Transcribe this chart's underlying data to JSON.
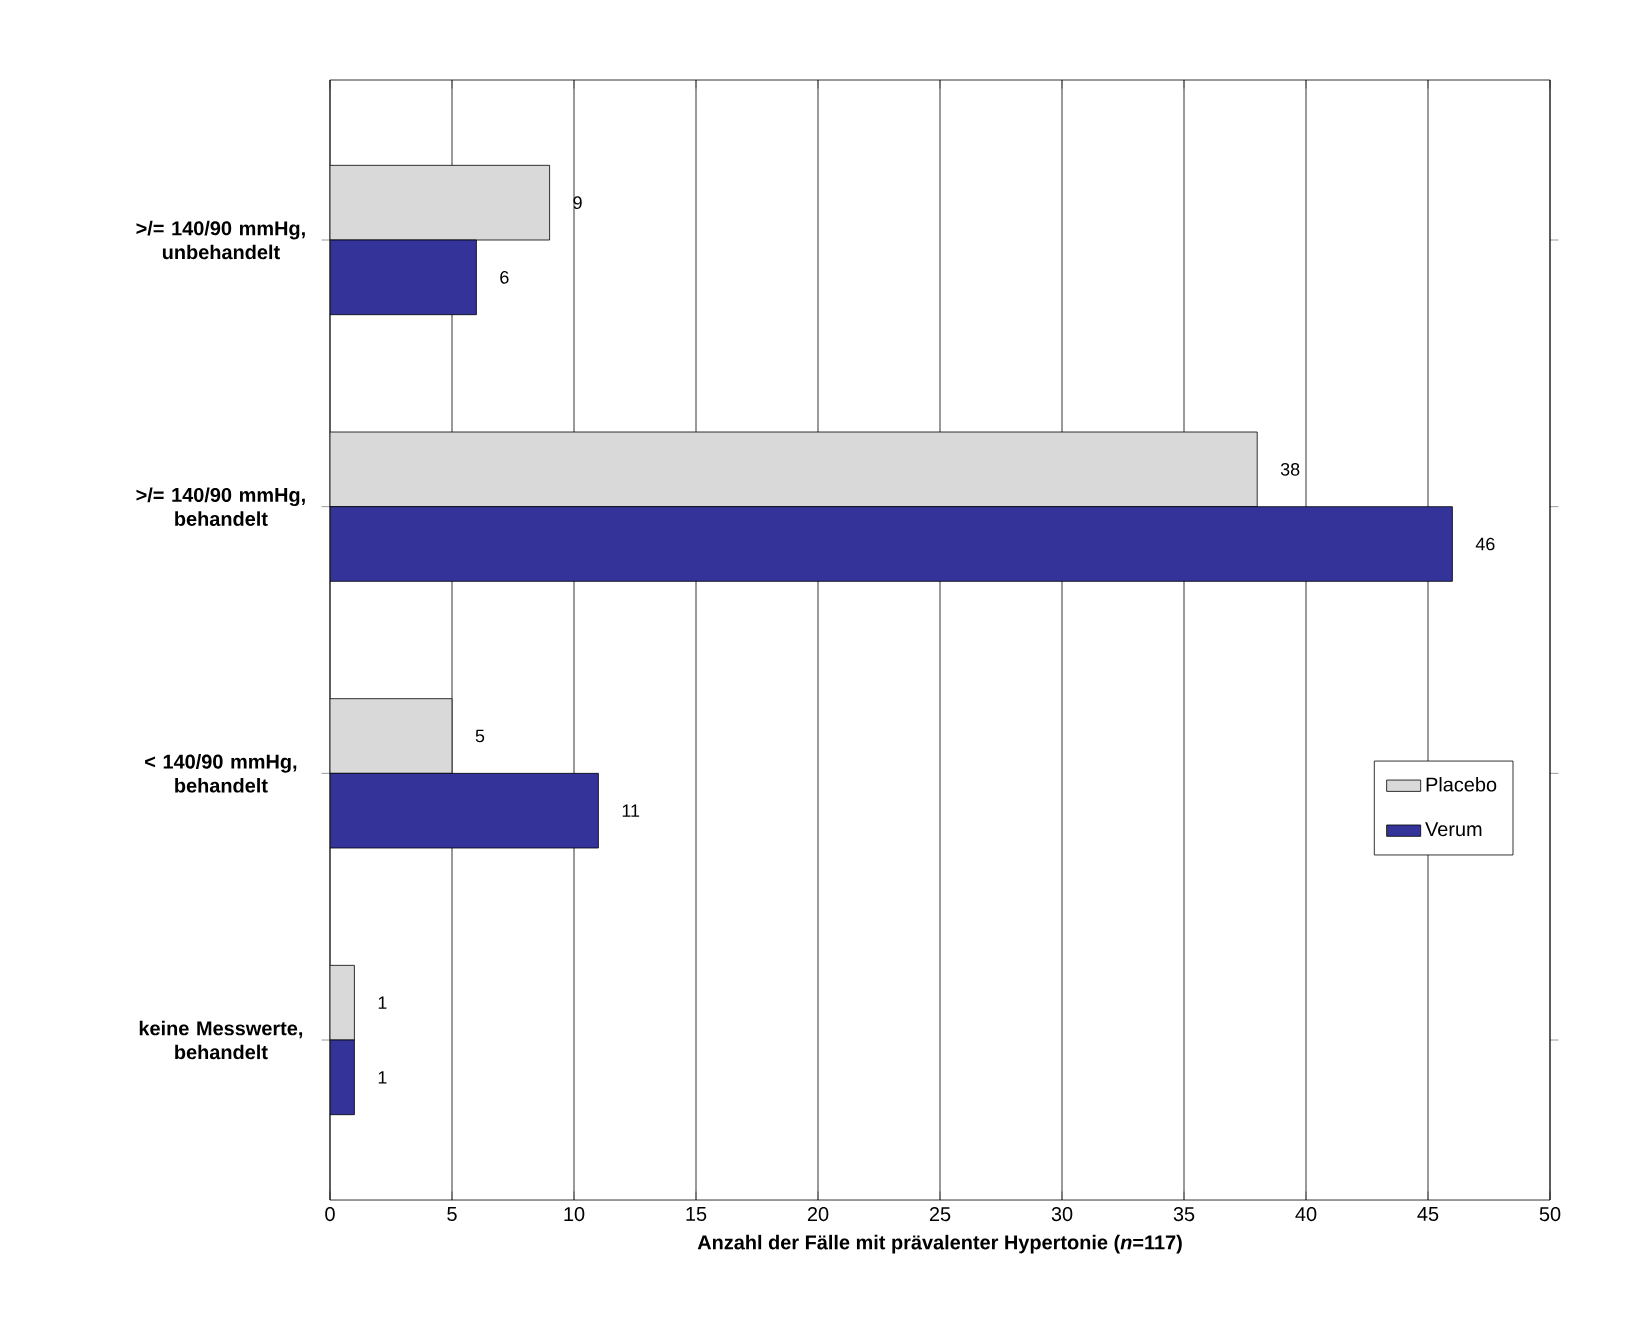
{
  "chart_data": {
    "type": "bar",
    "orientation": "horizontal",
    "categories": [
      ">/= 140/90 mmHg, unbehandelt",
      ">/= 140/90 mmHg, behandelt",
      "< 140/90 mmHg, behandelt",
      "keine Messwerte, behandelt"
    ],
    "series": [
      {
        "name": "Placebo",
        "color": "#d9d9d9",
        "values": [
          9,
          38,
          5,
          1
        ]
      },
      {
        "name": "Verum",
        "color": "#333399",
        "values": [
          6,
          46,
          11,
          1
        ]
      }
    ],
    "xlabel": "Anzahl der Fälle mit prävalenter Hypertonie (*n*=117)",
    "xlim": [
      0,
      50
    ],
    "xticks": [
      0,
      5,
      10,
      15,
      20,
      25,
      30,
      35,
      40,
      45,
      50
    ],
    "grid": "x",
    "legend": "right",
    "data_labels": true
  }
}
